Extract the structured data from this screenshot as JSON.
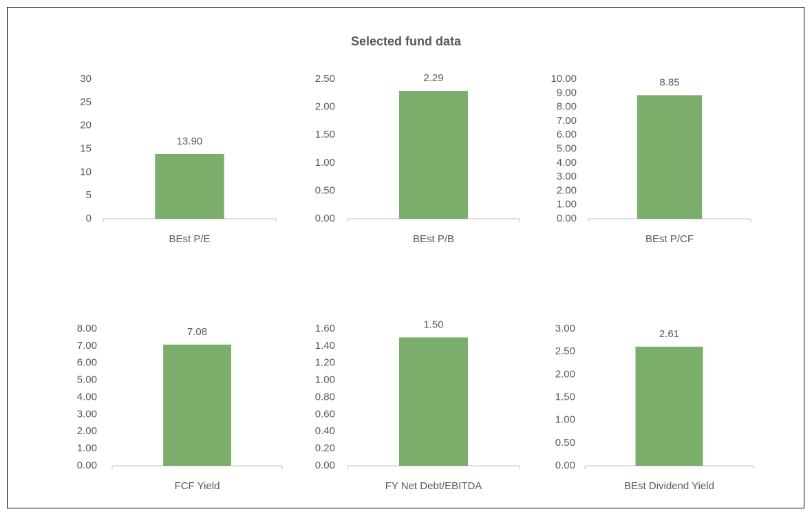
{
  "title": "Selected fund data",
  "chart_data": [
    {
      "type": "bar",
      "categories": [
        "BEst P/E"
      ],
      "values": [
        13.9
      ],
      "value_labels": [
        "13.90"
      ],
      "color": "#7aae6a",
      "ylim": [
        0,
        30
      ],
      "yticks": [
        0,
        5,
        10,
        15,
        20,
        25,
        30
      ]
    },
    {
      "type": "bar",
      "categories": [
        "BEst P/B"
      ],
      "values": [
        2.29
      ],
      "color": "#7aae6a",
      "ylim": [
        0,
        2.5
      ],
      "yticks": [
        {
          "value": 0,
          "label": "0.00"
        },
        {
          "value": 0.5,
          "label": "0.50"
        },
        {
          "value": 1,
          "label": "1.00"
        },
        {
          "value": 1.5,
          "label": "1.50"
        },
        {
          "value": 2,
          "label": "2.00"
        },
        {
          "value": 2.5,
          "label": "2.50"
        }
      ]
    },
    {
      "type": "bar",
      "categories": [
        "BEst P/CF"
      ],
      "values": [
        8.85
      ],
      "color": "#7aae6a",
      "ylim": [
        0,
        10
      ],
      "yticks": [
        {
          "value": 0,
          "label": "0.00"
        },
        {
          "value": 1,
          "label": "1.00"
        },
        {
          "value": 2,
          "label": "2.00"
        },
        {
          "value": 3,
          "label": "3.00"
        },
        {
          "value": 4,
          "label": "4.00"
        },
        {
          "value": 5,
          "label": "5.00"
        },
        {
          "value": 6,
          "label": "6.00"
        },
        {
          "value": 7,
          "label": "7.00"
        },
        {
          "value": 8,
          "label": "8.00"
        },
        {
          "value": 9,
          "label": "9.00"
        },
        {
          "value": 10,
          "label": "10.00"
        }
      ]
    },
    {
      "type": "bar",
      "categories": [
        "FCF Yield"
      ],
      "values": [
        7.08
      ],
      "color": "#7aae6a",
      "ylim": [
        0,
        8
      ],
      "yticks": [
        {
          "value": 0,
          "label": "0.00"
        },
        {
          "value": 1,
          "label": "1.00"
        },
        {
          "value": 2,
          "label": "2.00"
        },
        {
          "value": 3,
          "label": "3.00"
        },
        {
          "value": 4,
          "label": "4.00"
        },
        {
          "value": 5,
          "label": "5.00"
        },
        {
          "value": 6,
          "label": "6.00"
        },
        {
          "value": 7,
          "label": "7.00"
        },
        {
          "value": 8,
          "label": "8.00"
        }
      ]
    },
    {
      "type": "bar",
      "categories": [
        "FY Net Debt/EBITDA"
      ],
      "values": [
        1.5
      ],
      "value_labels": [
        "1.50"
      ],
      "color": "#7aae6a",
      "ylim": [
        0,
        1.6
      ],
      "yticks": [
        {
          "value": 0,
          "label": "0.00"
        },
        {
          "value": 0.2,
          "label": "0.20"
        },
        {
          "value": 0.4,
          "label": "0.40"
        },
        {
          "value": 0.6,
          "label": "0.60"
        },
        {
          "value": 0.8,
          "label": "0.80"
        },
        {
          "value": 1,
          "label": "1.00"
        },
        {
          "value": 1.2,
          "label": "1.20"
        },
        {
          "value": 1.4,
          "label": "1.40"
        },
        {
          "value": 1.6,
          "label": "1.60"
        }
      ]
    },
    {
      "type": "bar",
      "categories": [
        "BEst Dividend Yield"
      ],
      "values": [
        2.61
      ],
      "color": "#7aae6a",
      "ylim": [
        0,
        3
      ],
      "yticks": [
        {
          "value": 0,
          "label": "0.00"
        },
        {
          "value": 0.5,
          "label": "0.50"
        },
        {
          "value": 1,
          "label": "1.00"
        },
        {
          "value": 1.5,
          "label": "1.50"
        },
        {
          "value": 2,
          "label": "2.00"
        },
        {
          "value": 2.5,
          "label": "2.50"
        },
        {
          "value": 3,
          "label": "3.00"
        }
      ]
    }
  ]
}
